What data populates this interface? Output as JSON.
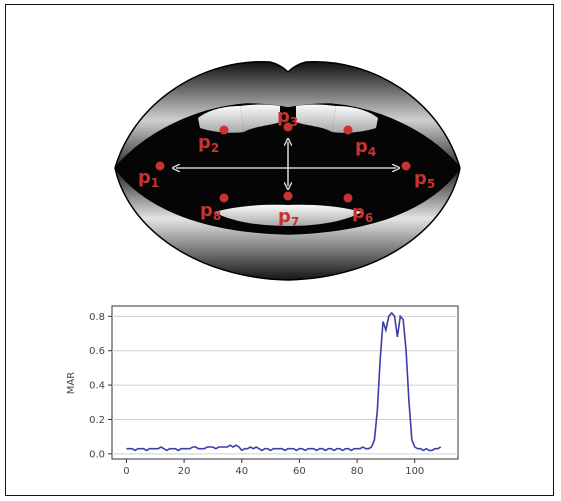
{
  "landmarks": [
    {
      "id": "p1",
      "letter": "p",
      "index": "1"
    },
    {
      "id": "p2",
      "letter": "p",
      "index": "2"
    },
    {
      "id": "p3",
      "letter": "p",
      "index": "3"
    },
    {
      "id": "p4",
      "letter": "p",
      "index": "4"
    },
    {
      "id": "p5",
      "letter": "p",
      "index": "5"
    },
    {
      "id": "p6",
      "letter": "p",
      "index": "6"
    },
    {
      "id": "p7",
      "letter": "p",
      "index": "7"
    },
    {
      "id": "p8",
      "letter": "p",
      "index": "8"
    }
  ],
  "colors": {
    "landmark": "#c8332f",
    "line": "#3b3fa8",
    "arrow": "#d0d0d0"
  },
  "chart_data": {
    "type": "line",
    "title": "",
    "xlabel": "",
    "ylabel": "MAR",
    "xlim": [
      -5,
      115
    ],
    "ylim": [
      -0.03,
      0.86
    ],
    "xticks": [
      0,
      20,
      40,
      60,
      80,
      100
    ],
    "yticks": [
      0.0,
      0.2,
      0.4,
      0.6,
      0.8
    ],
    "ytick_labels": [
      "0.0",
      "0.2",
      "0.4",
      "0.6",
      "0.8"
    ],
    "grid": "horizontal",
    "series": [
      {
        "x": [
          0,
          1,
          2,
          3,
          4,
          5,
          6,
          7,
          8,
          9,
          10,
          11,
          12,
          13,
          14,
          15,
          16,
          17,
          18,
          19,
          20,
          21,
          22,
          23,
          24,
          25,
          26,
          27,
          28,
          29,
          30,
          31,
          32,
          33,
          34,
          35,
          36,
          37,
          38,
          39,
          40,
          41,
          42,
          43,
          44,
          45,
          46,
          47,
          48,
          49,
          50,
          51,
          52,
          53,
          54,
          55,
          56,
          57,
          58,
          59,
          60,
          61,
          62,
          63,
          64,
          65,
          66,
          67,
          68,
          69,
          70,
          71,
          72,
          73,
          74,
          75,
          76,
          77,
          78,
          79,
          80,
          81,
          82,
          83,
          84,
          85,
          86,
          87,
          88,
          89,
          90,
          91,
          92,
          93,
          94,
          95,
          96,
          97,
          98,
          99,
          100,
          101,
          102,
          103,
          104,
          105,
          106,
          107,
          108,
          109
        ],
        "y": [
          0.03,
          0.03,
          0.03,
          0.02,
          0.03,
          0.03,
          0.03,
          0.02,
          0.03,
          0.03,
          0.03,
          0.03,
          0.04,
          0.03,
          0.02,
          0.03,
          0.03,
          0.03,
          0.02,
          0.03,
          0.03,
          0.03,
          0.03,
          0.04,
          0.04,
          0.03,
          0.03,
          0.03,
          0.04,
          0.04,
          0.04,
          0.03,
          0.04,
          0.04,
          0.04,
          0.04,
          0.05,
          0.04,
          0.05,
          0.04,
          0.02,
          0.03,
          0.03,
          0.04,
          0.03,
          0.04,
          0.03,
          0.02,
          0.03,
          0.03,
          0.02,
          0.03,
          0.03,
          0.03,
          0.03,
          0.02,
          0.03,
          0.03,
          0.03,
          0.02,
          0.03,
          0.03,
          0.02,
          0.03,
          0.03,
          0.03,
          0.02,
          0.03,
          0.03,
          0.02,
          0.03,
          0.03,
          0.02,
          0.03,
          0.03,
          0.02,
          0.03,
          0.03,
          0.02,
          0.03,
          0.03,
          0.03,
          0.04,
          0.03,
          0.03,
          0.04,
          0.08,
          0.25,
          0.55,
          0.77,
          0.72,
          0.8,
          0.82,
          0.8,
          0.68,
          0.8,
          0.78,
          0.6,
          0.3,
          0.08,
          0.04,
          0.03,
          0.03,
          0.02,
          0.03,
          0.02,
          0.02,
          0.03,
          0.03,
          0.04
        ]
      }
    ]
  }
}
